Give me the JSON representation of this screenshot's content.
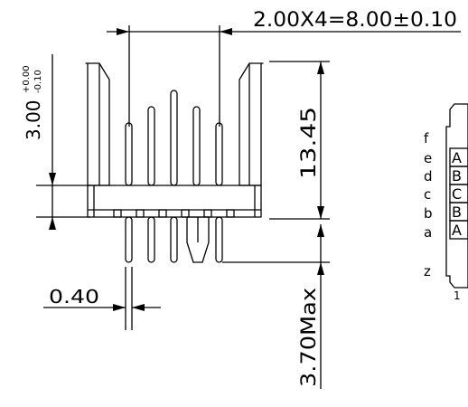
{
  "dimensions": {
    "pitch_total": "2.00X4=8.00±0.10",
    "body_height_main": "3.00",
    "body_height_tol_upper": "+0.00",
    "body_height_tol_lower": "-0.10",
    "pin_height": "13.45",
    "pin_width": "0.40",
    "tail_length": "3.70Max"
  },
  "pin_rows": [
    {
      "letter": "f",
      "cell": ""
    },
    {
      "letter": "e",
      "cell": "A"
    },
    {
      "letter": "d",
      "cell": "B"
    },
    {
      "letter": "c",
      "cell": "C"
    },
    {
      "letter": "b",
      "cell": "B"
    },
    {
      "letter": "a",
      "cell": "A"
    },
    {
      "letter": "z",
      "cell": ""
    }
  ],
  "pin_one_marker": "1",
  "colors": {
    "line": "#000000",
    "background": "#ffffff"
  }
}
